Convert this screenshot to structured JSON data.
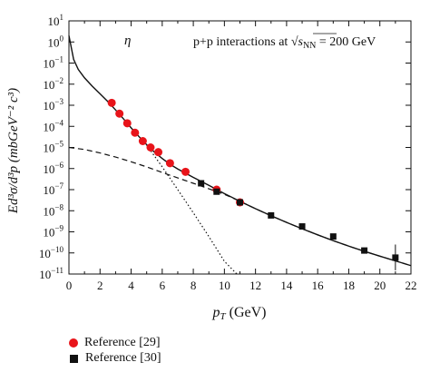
{
  "chart_data": {
    "type": "scatter",
    "xlabel_main": "p",
    "xlabel_sub": "T",
    "xlabel_unit": " (GeV)",
    "ylabel": "Ed³σ/d³p (mbGeV⁻² c³)",
    "particle": "η",
    "annotation_text": "p+p interactions at ",
    "annotation_sqrt": "√",
    "annotation_s": "s",
    "annotation_sub": "NN",
    "annotation_value": " = 200 GeV",
    "x_ticks": [
      "0",
      "2",
      "4",
      "6",
      "8",
      "10",
      "12",
      "14",
      "16",
      "18",
      "20",
      "22"
    ],
    "y_ticks": [
      {
        "exp": 1,
        "label": "1"
      },
      {
        "exp": 0,
        "label": "0"
      },
      {
        "exp": -1,
        "label": "−1"
      },
      {
        "exp": -2,
        "label": "−2"
      },
      {
        "exp": -3,
        "label": "−3"
      },
      {
        "exp": -4,
        "label": "−4"
      },
      {
        "exp": -5,
        "label": "−5"
      },
      {
        "exp": -6,
        "label": "−6"
      },
      {
        "exp": -7,
        "label": "−7"
      },
      {
        "exp": -8,
        "label": "−8"
      },
      {
        "exp": -9,
        "label": "−9"
      },
      {
        "exp": -10,
        "label": "−10"
      },
      {
        "exp": -11,
        "label": "−11"
      }
    ],
    "y_tick_base": "10",
    "xlim": [
      0,
      22
    ],
    "ylog10_lim": [
      -11,
      1
    ],
    "y_scale": "log",
    "series": [
      {
        "name": "Reference [29]",
        "marker": "circle",
        "color": "#e8141a",
        "points": [
          {
            "x": 2.75,
            "y": 0.0013
          },
          {
            "x": 3.25,
            "y": 0.0004
          },
          {
            "x": 3.75,
            "y": 0.00014
          },
          {
            "x": 4.25,
            "y": 5e-05
          },
          {
            "x": 4.75,
            "y": 2e-05
          },
          {
            "x": 5.25,
            "y": 1e-05
          },
          {
            "x": 5.75,
            "y": 6e-06
          },
          {
            "x": 6.5,
            "y": 1.8e-06
          },
          {
            "x": 7.5,
            "y": 7e-07
          },
          {
            "x": 9.5,
            "y": 1e-07
          },
          {
            "x": 11.0,
            "y": 2.5e-08
          }
        ]
      },
      {
        "name": "Reference [30]",
        "marker": "square",
        "color": "#111111",
        "points": [
          {
            "x": 8.5,
            "y": 2e-07
          },
          {
            "x": 9.5,
            "y": 8e-08
          },
          {
            "x": 11.0,
            "y": 2.5e-08
          },
          {
            "x": 13.0,
            "y": 6e-09
          },
          {
            "x": 15.0,
            "y": 1.8e-09
          },
          {
            "x": 17.0,
            "y": 6e-10
          },
          {
            "x": 19.0,
            "y": 1.3e-10
          },
          {
            "x": 21.0,
            "y": 6e-11,
            "err_lo": 1.5e-11,
            "err_hi": 2.5e-10
          }
        ]
      }
    ],
    "curves": [
      {
        "style": "solid",
        "points": [
          [
            0,
            2.0
          ],
          [
            0.3,
            0.15
          ],
          [
            0.6,
            0.05
          ],
          [
            1,
            0.02
          ],
          [
            1.5,
            0.008
          ],
          [
            2,
            0.0035
          ],
          [
            2.5,
            0.0015
          ],
          [
            3,
            0.0006
          ],
          [
            3.5,
            0.00023
          ],
          [
            4,
            8.5e-05
          ],
          [
            4.5,
            3.3e-05
          ],
          [
            5,
            1.35e-05
          ],
          [
            5.5,
            6e-06
          ],
          [
            6,
            3e-06
          ],
          [
            6.5,
            1.6e-06
          ],
          [
            7,
            9.5e-07
          ],
          [
            7.5,
            6e-07
          ],
          [
            8,
            3.8e-07
          ],
          [
            9,
            1.6e-07
          ],
          [
            10,
            6.5e-08
          ],
          [
            11,
            2.8e-08
          ],
          [
            12,
            1.25e-08
          ],
          [
            13,
            5.8e-09
          ],
          [
            14,
            2.8e-09
          ],
          [
            15,
            1.4e-09
          ],
          [
            16,
            7.2e-10
          ],
          [
            17,
            3.8e-10
          ],
          [
            18,
            2.1e-10
          ],
          [
            19,
            1.2e-10
          ],
          [
            20,
            7e-11
          ],
          [
            21,
            4.2e-11
          ],
          [
            22,
            2.5e-11
          ]
        ]
      },
      {
        "style": "dashed",
        "points": [
          [
            0,
            1e-05
          ],
          [
            1,
            8e-06
          ],
          [
            2,
            5.5e-06
          ],
          [
            3,
            3.5e-06
          ],
          [
            4,
            2.1e-06
          ],
          [
            5,
            1.2e-06
          ],
          [
            6,
            6.5e-07
          ],
          [
            7,
            3.6e-07
          ],
          [
            8,
            2e-07
          ],
          [
            9,
            1.1e-07
          ],
          [
            10,
            6e-08
          ],
          [
            11,
            2.8e-08
          ],
          [
            12,
            1.25e-08
          ],
          [
            13,
            5.8e-09
          ],
          [
            14,
            2.8e-09
          ],
          [
            15,
            1.4e-09
          ],
          [
            16,
            7.2e-10
          ],
          [
            17,
            3.8e-10
          ],
          [
            18,
            2.1e-10
          ],
          [
            19,
            1.2e-10
          ],
          [
            20,
            7e-11
          ],
          [
            21,
            4.2e-11
          ],
          [
            22,
            2.5e-11
          ]
        ]
      },
      {
        "style": "dotted",
        "points": [
          [
            5.0,
            1.3e-05
          ],
          [
            6,
            1.2e-06
          ],
          [
            7,
            1e-07
          ],
          [
            8,
            8e-09
          ],
          [
            9,
            6e-10
          ],
          [
            10,
            4e-11
          ],
          [
            10.8,
            1e-11
          ]
        ]
      }
    ]
  },
  "legend": [
    {
      "label": "Reference [29]",
      "marker": "circle"
    },
    {
      "label": "Reference [30]",
      "marker": "square"
    }
  ]
}
